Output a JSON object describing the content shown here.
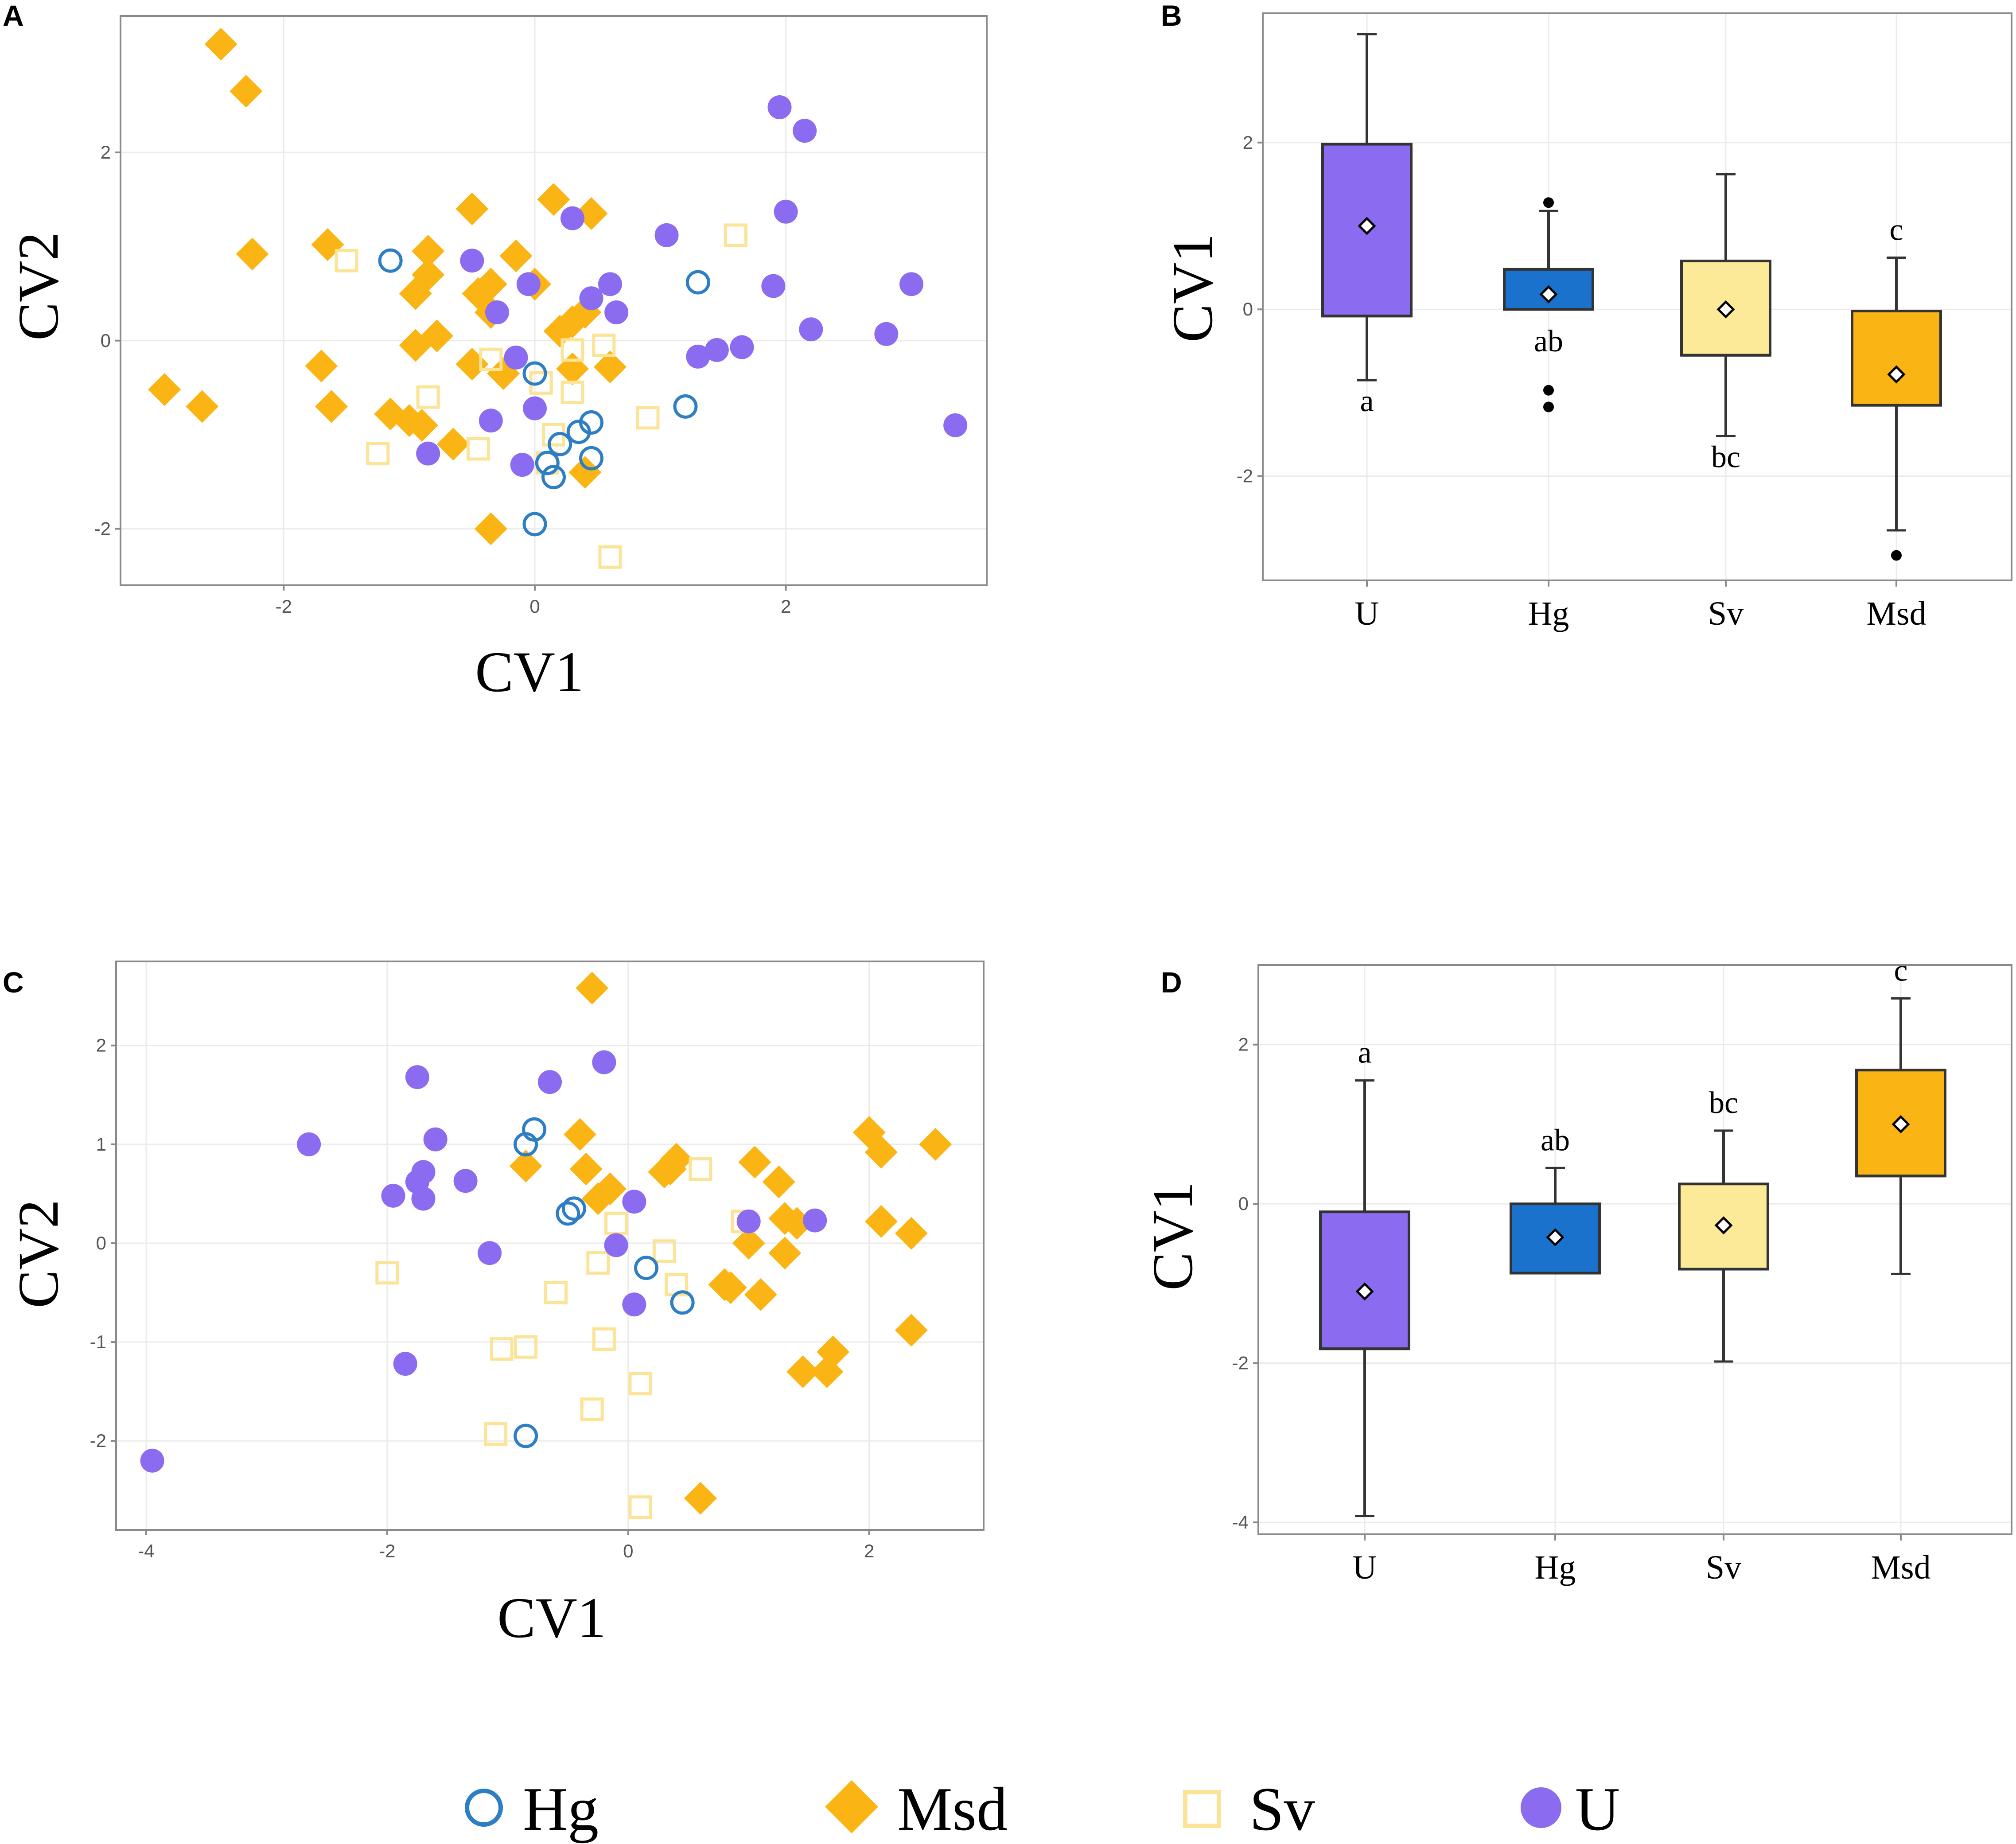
{
  "colors": {
    "U": "#8B6BF0",
    "Msd": "#FAB414",
    "Sv": "#FBE497",
    "Hg": "#2D7EC4",
    "Hg_box": "#1B72CC",
    "Sv_box": "#FCEA98",
    "whisker": "#333333"
  },
  "legend": [
    {
      "key": "Hg",
      "label": "Hg",
      "marker": "open-circle-icon"
    },
    {
      "key": "Msd",
      "label": "Msd",
      "marker": "diamond-icon"
    },
    {
      "key": "Sv",
      "label": "Sv",
      "marker": "open-square-icon"
    },
    {
      "key": "U",
      "label": "U",
      "marker": "filled-circle-icon"
    }
  ],
  "chart_data": [
    {
      "panel": "A",
      "type": "scatter",
      "xlabel": "CV1",
      "ylabel": "CV2",
      "xlim": [
        -3.3,
        3.6
      ],
      "ylim": [
        -2.6,
        3.45
      ],
      "xticks": [
        -2,
        0,
        2
      ],
      "yticks": [
        -2,
        0,
        2
      ],
      "grid": true,
      "series": [
        {
          "name": "Msd",
          "points": [
            [
              -2.5,
              3.15
            ],
            [
              -2.3,
              2.65
            ],
            [
              -2.25,
              0.92
            ],
            [
              -2.95,
              -0.52
            ],
            [
              -2.65,
              -0.7
            ],
            [
              -1.65,
              1.02
            ],
            [
              -1.7,
              -0.27
            ],
            [
              -1.62,
              -0.7
            ],
            [
              -1.15,
              -0.78
            ],
            [
              -1.0,
              -0.85
            ],
            [
              -0.9,
              -0.9
            ],
            [
              -0.85,
              0.95
            ],
            [
              -0.85,
              0.7
            ],
            [
              -0.95,
              0.5
            ],
            [
              -0.95,
              -0.05
            ],
            [
              -0.78,
              0.05
            ],
            [
              -0.65,
              -1.1
            ],
            [
              -0.5,
              1.4
            ],
            [
              -0.35,
              0.6
            ],
            [
              -0.45,
              0.5
            ],
            [
              -0.15,
              0.9
            ],
            [
              -0.25,
              -0.35
            ],
            [
              0.0,
              0.6
            ],
            [
              0.15,
              1.5
            ],
            [
              0.45,
              1.35
            ],
            [
              0.2,
              0.1
            ],
            [
              0.3,
              0.2
            ],
            [
              0.4,
              0.3
            ],
            [
              0.3,
              -0.3
            ],
            [
              0.6,
              -0.28
            ],
            [
              0.4,
              -1.4
            ],
            [
              -0.35,
              -2.0
            ],
            [
              -0.5,
              -0.25
            ],
            [
              -0.35,
              0.3
            ]
          ]
        },
        {
          "name": "Sv",
          "points": [
            [
              -1.5,
              0.85
            ],
            [
              -1.25,
              -1.2
            ],
            [
              -0.85,
              -0.6
            ],
            [
              -0.45,
              -1.15
            ],
            [
              -0.35,
              -0.2
            ],
            [
              0.05,
              -0.45
            ],
            [
              0.15,
              -1.0
            ],
            [
              0.1,
              -1.3
            ],
            [
              0.3,
              -0.55
            ],
            [
              0.3,
              -0.1
            ],
            [
              0.55,
              -0.05
            ],
            [
              0.6,
              -2.3
            ],
            [
              0.9,
              -0.82
            ],
            [
              1.6,
              1.12
            ]
          ]
        },
        {
          "name": "Hg",
          "points": [
            [
              -1.15,
              0.85
            ],
            [
              0.0,
              -0.35
            ],
            [
              0.1,
              -1.3
            ],
            [
              0.15,
              -1.45
            ],
            [
              0.2,
              -1.1
            ],
            [
              0.35,
              -0.97
            ],
            [
              0.45,
              -0.87
            ],
            [
              0.45,
              -1.25
            ],
            [
              0.0,
              -1.95
            ],
            [
              1.2,
              -0.7
            ],
            [
              1.3,
              0.62
            ]
          ]
        },
        {
          "name": "U",
          "points": [
            [
              1.95,
              2.48
            ],
            [
              2.15,
              2.23
            ],
            [
              2.0,
              1.37
            ],
            [
              1.05,
              1.12
            ],
            [
              0.3,
              1.3
            ],
            [
              -0.5,
              0.85
            ],
            [
              -0.05,
              0.6
            ],
            [
              -0.3,
              0.3
            ],
            [
              0.45,
              0.45
            ],
            [
              0.6,
              0.6
            ],
            [
              0.65,
              0.3
            ],
            [
              1.3,
              -0.17
            ],
            [
              1.45,
              -0.1
            ],
            [
              1.65,
              -0.07
            ],
            [
              1.9,
              0.58
            ],
            [
              2.2,
              0.12
            ],
            [
              2.8,
              0.07
            ],
            [
              3.0,
              0.6
            ],
            [
              3.35,
              -0.9
            ],
            [
              -0.15,
              -0.18
            ],
            [
              0.0,
              -0.72
            ],
            [
              -0.35,
              -0.85
            ],
            [
              -0.85,
              -1.2
            ],
            [
              -0.1,
              -1.32
            ]
          ]
        }
      ]
    },
    {
      "panel": "B",
      "type": "box",
      "xlabel": "",
      "ylabel": "CV1",
      "ylim": [
        -3.25,
        3.55
      ],
      "yticks": [
        -2,
        0,
        2
      ],
      "grid": true,
      "categories": [
        "U",
        "Hg",
        "Sv",
        "Msd"
      ],
      "boxes": [
        {
          "group": "U",
          "whisker_low": -0.85,
          "q1": -0.08,
          "median": -0.08,
          "q3": 1.98,
          "whisker_high": 3.3,
          "mean": 1.0,
          "outliers": [],
          "letter": "a",
          "letter_pos": "below"
        },
        {
          "group": "Hg",
          "whisker_low": 0.0,
          "q1": 0.0,
          "median": 0.0,
          "q3": 0.48,
          "whisker_high": 1.18,
          "mean": 0.18,
          "outliers": [
            1.28,
            -0.97,
            -1.17
          ],
          "letter": "ab",
          "letter_pos": "below"
        },
        {
          "group": "Sv",
          "whisker_low": -1.52,
          "q1": -0.55,
          "median": -0.55,
          "q3": 0.58,
          "whisker_high": 1.62,
          "mean": 0.0,
          "outliers": [],
          "letter": "bc",
          "letter_pos": "below"
        },
        {
          "group": "Msd",
          "whisker_low": -2.65,
          "q1": -1.15,
          "median": -0.02,
          "q3": -0.02,
          "whisker_high": 0.62,
          "mean": -0.78,
          "outliers": [
            -2.95
          ],
          "letter": "c",
          "letter_pos": "above"
        }
      ]
    },
    {
      "panel": "C",
      "type": "scatter",
      "xlabel": "CV1",
      "ylabel": "CV2",
      "xlim": [
        -4.25,
        2.95
      ],
      "ylim": [
        -2.9,
        2.85
      ],
      "xticks": [
        -4,
        -2,
        0,
        2
      ],
      "yticks": [
        -2,
        -1,
        0,
        1,
        2
      ],
      "grid": true,
      "series": [
        {
          "name": "Msd",
          "points": [
            [
              -0.3,
              2.58
            ],
            [
              -0.4,
              1.1
            ],
            [
              -0.85,
              0.78
            ],
            [
              -0.35,
              0.75
            ],
            [
              -0.15,
              0.55
            ],
            [
              -0.25,
              0.45
            ],
            [
              0.3,
              0.72
            ],
            [
              0.4,
              0.85
            ],
            [
              0.35,
              0.75
            ],
            [
              1.05,
              0.82
            ],
            [
              1.25,
              0.62
            ],
            [
              1.3,
              0.25
            ],
            [
              1.4,
              0.2
            ],
            [
              1.0,
              0.0
            ],
            [
              1.3,
              -0.1
            ],
            [
              0.8,
              -0.42
            ],
            [
              0.85,
              -0.45
            ],
            [
              1.1,
              -0.52
            ],
            [
              2.0,
              1.12
            ],
            [
              2.1,
              0.92
            ],
            [
              2.55,
              1.0
            ],
            [
              2.1,
              0.22
            ],
            [
              2.35,
              0.1
            ],
            [
              2.35,
              -0.88
            ],
            [
              1.45,
              -1.3
            ],
            [
              1.65,
              -1.3
            ],
            [
              1.7,
              -1.1
            ],
            [
              0.6,
              -2.58
            ]
          ]
        },
        {
          "name": "Sv",
          "points": [
            [
              -2.0,
              -0.3
            ],
            [
              -1.05,
              -1.07
            ],
            [
              -0.85,
              -1.05
            ],
            [
              -0.6,
              -0.5
            ],
            [
              -1.1,
              -1.93
            ],
            [
              -0.25,
              -0.2
            ],
            [
              -0.2,
              -0.97
            ],
            [
              -0.3,
              -1.68
            ],
            [
              0.1,
              -1.42
            ],
            [
              0.1,
              -2.67
            ],
            [
              0.3,
              -0.08
            ],
            [
              0.4,
              -0.42
            ],
            [
              0.6,
              0.75
            ],
            [
              0.95,
              0.22
            ],
            [
              -0.1,
              0.2
            ]
          ]
        },
        {
          "name": "Hg",
          "points": [
            [
              -0.85,
              1.0
            ],
            [
              -0.78,
              1.15
            ],
            [
              -0.5,
              0.3
            ],
            [
              -0.45,
              0.35
            ],
            [
              0.15,
              -0.25
            ],
            [
              0.45,
              -0.6
            ],
            [
              -0.85,
              -1.95
            ]
          ]
        },
        {
          "name": "U",
          "points": [
            [
              -2.65,
              1.0
            ],
            [
              -1.75,
              1.68
            ],
            [
              -1.6,
              1.05
            ],
            [
              -1.7,
              0.72
            ],
            [
              -1.75,
              0.62
            ],
            [
              -1.95,
              0.48
            ],
            [
              -1.7,
              0.45
            ],
            [
              -1.35,
              0.63
            ],
            [
              -0.65,
              1.63
            ],
            [
              -0.2,
              1.83
            ],
            [
              0.05,
              0.42
            ],
            [
              -0.1,
              -0.02
            ],
            [
              -1.15,
              -0.1
            ],
            [
              -1.85,
              -1.22
            ],
            [
              -3.95,
              -2.2
            ],
            [
              1.0,
              0.22
            ],
            [
              1.55,
              0.23
            ],
            [
              0.05,
              -0.62
            ]
          ]
        }
      ]
    },
    {
      "panel": "D",
      "type": "box",
      "xlabel": "",
      "ylabel": "CV1",
      "ylim": [
        -4.15,
        3.0
      ],
      "yticks": [
        -4,
        -2,
        0,
        2
      ],
      "grid": true,
      "categories": [
        "U",
        "Hg",
        "Sv",
        "Msd"
      ],
      "boxes": [
        {
          "group": "U",
          "whisker_low": -3.92,
          "q1": -1.82,
          "median": -1.82,
          "q3": -0.1,
          "whisker_high": 1.55,
          "mean": -1.1,
          "outliers": [],
          "letter": "a",
          "letter_pos": "above"
        },
        {
          "group": "Hg",
          "whisker_low": -0.87,
          "q1": -0.87,
          "median": -0.87,
          "q3": 0.0,
          "whisker_high": 0.45,
          "mean": -0.42,
          "outliers": [],
          "letter": "ab",
          "letter_pos": "above"
        },
        {
          "group": "Sv",
          "whisker_low": -1.98,
          "q1": -0.82,
          "median": -0.82,
          "q3": 0.25,
          "whisker_high": 0.92,
          "mean": -0.27,
          "outliers": [],
          "letter": "bc",
          "letter_pos": "above"
        },
        {
          "group": "Msd",
          "whisker_low": -0.88,
          "q1": 0.35,
          "median": 0.35,
          "q3": 1.68,
          "whisker_high": 2.58,
          "mean": 1.0,
          "outliers": [],
          "letter": "c",
          "letter_pos": "above"
        }
      ]
    }
  ]
}
